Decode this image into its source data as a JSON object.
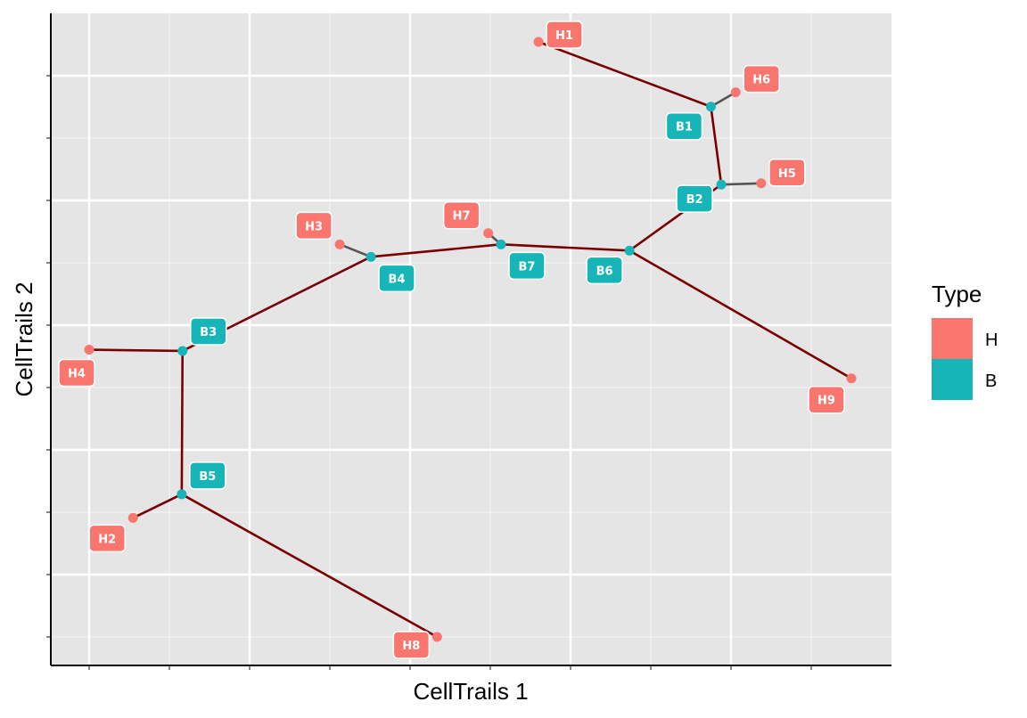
{
  "chart_data": {
    "type": "scatter",
    "title": "",
    "xlabel": "CellTrails 1",
    "ylabel": "CellTrails 2",
    "xlim": [
      -0.05,
      1.0
    ],
    "ylim": [
      -0.03,
      1.0
    ],
    "grid": true,
    "legend": {
      "title": "Type",
      "position": "right",
      "entries": [
        {
          "name": "H",
          "color": "#f8766d"
        },
        {
          "name": "B",
          "color": "#17b5b8"
        }
      ]
    },
    "points": [
      {
        "label": "H1",
        "type": "H",
        "x": 0.563,
        "y": 0.955
      },
      {
        "label": "H6",
        "type": "H",
        "x": 0.81,
        "y": 0.874
      },
      {
        "label": "B1",
        "type": "B",
        "x": 0.779,
        "y": 0.851
      },
      {
        "label": "H5",
        "type": "H",
        "x": 0.842,
        "y": 0.728
      },
      {
        "label": "B2",
        "type": "B",
        "x": 0.792,
        "y": 0.726
      },
      {
        "label": "H7",
        "type": "H",
        "x": 0.5,
        "y": 0.648
      },
      {
        "label": "B7",
        "type": "B",
        "x": 0.516,
        "y": 0.63
      },
      {
        "label": "B6",
        "type": "B",
        "x": 0.677,
        "y": 0.62
      },
      {
        "label": "H3",
        "type": "H",
        "x": 0.314,
        "y": 0.63
      },
      {
        "label": "B4",
        "type": "B",
        "x": 0.353,
        "y": 0.61
      },
      {
        "label": "B3",
        "type": "B",
        "x": 0.117,
        "y": 0.459
      },
      {
        "label": "H4",
        "type": "H",
        "x": 0.0,
        "y": 0.461
      },
      {
        "label": "H9",
        "type": "H",
        "x": 0.955,
        "y": 0.415
      },
      {
        "label": "B5",
        "type": "B",
        "x": 0.116,
        "y": 0.229
      },
      {
        "label": "H2",
        "type": "H",
        "x": 0.055,
        "y": 0.191
      },
      {
        "label": "H8",
        "type": "H",
        "x": 0.436,
        "y": 0.0
      }
    ],
    "edges": [
      [
        "H1",
        "B1"
      ],
      [
        "H6",
        "B1"
      ],
      [
        "B1",
        "B2"
      ],
      [
        "H5",
        "B2"
      ],
      [
        "B2",
        "B6"
      ],
      [
        "B6",
        "B7"
      ],
      [
        "H7",
        "B7"
      ],
      [
        "B7",
        "B4"
      ],
      [
        "H3",
        "B4"
      ],
      [
        "B4",
        "B3"
      ],
      [
        "H4",
        "B3"
      ],
      [
        "B3",
        "B5"
      ],
      [
        "H2",
        "B5"
      ],
      [
        "B5",
        "H8"
      ],
      [
        "B6",
        "H9"
      ]
    ]
  }
}
